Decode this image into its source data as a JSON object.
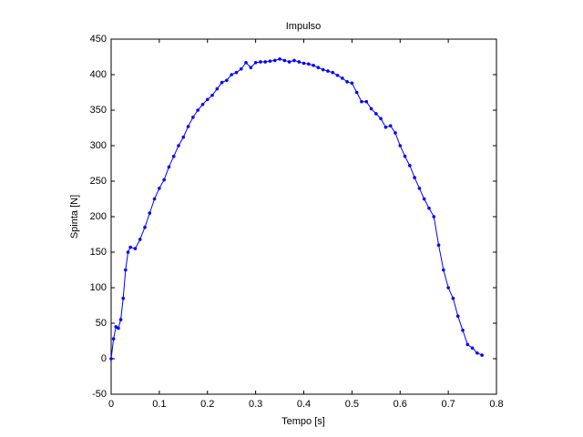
{
  "chart_data": {
    "type": "line",
    "title": "Impulso",
    "x_label": "Tempo [s]",
    "y_label": "Spinta [N]",
    "x": [
      0,
      0.005,
      0.01,
      0.015,
      0.02,
      0.025,
      0.03,
      0.035,
      0.04,
      0.05,
      0.06,
      0.07,
      0.08,
      0.09,
      0.1,
      0.11,
      0.12,
      0.13,
      0.14,
      0.15,
      0.16,
      0.17,
      0.18,
      0.19,
      0.2,
      0.21,
      0.22,
      0.23,
      0.24,
      0.25,
      0.26,
      0.27,
      0.28,
      0.29,
      0.3,
      0.31,
      0.32,
      0.33,
      0.34,
      0.35,
      0.36,
      0.37,
      0.38,
      0.39,
      0.4,
      0.41,
      0.42,
      0.43,
      0.44,
      0.45,
      0.46,
      0.47,
      0.48,
      0.49,
      0.5,
      0.51,
      0.52,
      0.53,
      0.54,
      0.55,
      0.56,
      0.57,
      0.58,
      0.59,
      0.6,
      0.61,
      0.62,
      0.63,
      0.64,
      0.65,
      0.66,
      0.67,
      0.68,
      0.69,
      0.7,
      0.71,
      0.72,
      0.73,
      0.74,
      0.75,
      0.76,
      0.77
    ],
    "series": [
      {
        "color": "#0000ff",
        "values": [
          0,
          28,
          45,
          43,
          55,
          85,
          125,
          150,
          157,
          155,
          168,
          185,
          205,
          225,
          240,
          252,
          270,
          285,
          300,
          312,
          327,
          340,
          350,
          358,
          365,
          371,
          380,
          389,
          392,
          400,
          403,
          408,
          417,
          410,
          417,
          418,
          418,
          419,
          420,
          422,
          420,
          418,
          420,
          418,
          416,
          415,
          413,
          410,
          407,
          405,
          403,
          399,
          395,
          390,
          388,
          375,
          362,
          362,
          352,
          345,
          338,
          326,
          328,
          318,
          300,
          285,
          272,
          255,
          240,
          225,
          212,
          200,
          160,
          125,
          100,
          85,
          60,
          40,
          20,
          15,
          8,
          5
        ]
      }
    ],
    "xlim": [
      0,
      0.8
    ],
    "ylim": [
      -50,
      450
    ],
    "xticks": [
      0,
      0.1,
      0.2,
      0.3,
      0.4,
      0.5,
      0.6,
      0.7,
      0.8
    ],
    "yticks": [
      -50,
      0,
      50,
      100,
      150,
      200,
      250,
      300,
      350,
      400,
      450
    ],
    "grid": false
  }
}
